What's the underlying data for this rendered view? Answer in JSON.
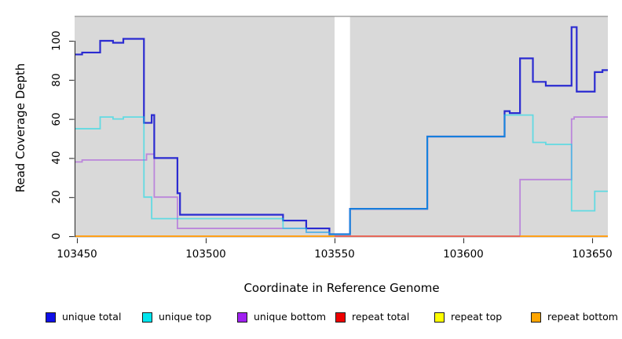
{
  "chart_data": {
    "type": "line",
    "subtype": "step",
    "xlabel": "Coordinate in Reference Genome",
    "ylabel": "Read Coverage Depth",
    "xlim": [
      103450,
      103656
    ],
    "ylim": [
      0,
      113
    ],
    "x_ticks": [
      103450,
      103500,
      103550,
      103600,
      103650
    ],
    "y_ticks": [
      0,
      20,
      40,
      60,
      80,
      100
    ],
    "grid": false,
    "panel_background": "#D9D9D9",
    "panel_top_border": "#A8A8A8",
    "gap_band": {
      "from": 103550,
      "to": 103556,
      "color": "#FFFFFF"
    },
    "series": [
      {
        "name": "repeat top",
        "color": "#F5E800",
        "opacity": 1,
        "width": 1.6,
        "points": [
          [
            103450,
            0
          ],
          [
            103656,
            0
          ]
        ]
      },
      {
        "name": "unique bottom",
        "color": "#BB86DB",
        "opacity": 1,
        "width": 1.8,
        "points": [
          [
            103450,
            38
          ],
          [
            103452,
            39
          ],
          [
            103477,
            42
          ],
          [
            103480,
            20
          ],
          [
            103489,
            4
          ],
          [
            103539,
            2
          ],
          [
            103548,
            0
          ],
          [
            103622,
            29
          ],
          [
            103642,
            60
          ],
          [
            103643,
            61
          ],
          [
            103656,
            61
          ]
        ]
      },
      {
        "name": "repeat bottom",
        "color": "#FFA019",
        "opacity": 1,
        "width": 2,
        "points": [
          [
            103450,
            0
          ],
          [
            103656,
            0
          ]
        ]
      },
      {
        "name": "repeat total",
        "color": "#DE5570",
        "opacity": 1,
        "width": 1.6,
        "points": [
          [
            103550,
            0
          ],
          [
            103622,
            0
          ]
        ]
      },
      {
        "name": "unique total",
        "color": "#2B2BD1",
        "opacity": 1,
        "width": 2.2,
        "points": [
          [
            103450,
            93
          ],
          [
            103452,
            94
          ],
          [
            103459,
            100
          ],
          [
            103464,
            99
          ],
          [
            103468,
            101
          ],
          [
            103476,
            58
          ],
          [
            103479,
            62
          ],
          [
            103480,
            40
          ],
          [
            103489,
            22
          ],
          [
            103490,
            11
          ],
          [
            103530,
            8
          ],
          [
            103539,
            4
          ],
          [
            103548,
            1
          ],
          [
            103556,
            14
          ],
          [
            103586,
            51
          ],
          [
            103616,
            64
          ],
          [
            103618,
            63
          ],
          [
            103622,
            91
          ],
          [
            103627,
            79
          ],
          [
            103632,
            77
          ],
          [
            103642,
            107
          ],
          [
            103644,
            74
          ],
          [
            103651,
            84
          ],
          [
            103654,
            85
          ],
          [
            103656,
            85
          ]
        ]
      },
      {
        "name": "unique top",
        "color": "#00DBE9",
        "opacity": 0.55,
        "width": 1.8,
        "points": [
          [
            103450,
            55
          ],
          [
            103459,
            61
          ],
          [
            103464,
            60
          ],
          [
            103468,
            61
          ],
          [
            103476,
            20
          ],
          [
            103479,
            9
          ],
          [
            103530,
            4
          ],
          [
            103539,
            2
          ],
          [
            103548,
            1
          ],
          [
            103556,
            14
          ],
          [
            103586,
            51
          ],
          [
            103616,
            62
          ],
          [
            103627,
            48
          ],
          [
            103632,
            47
          ],
          [
            103642,
            13
          ],
          [
            103651,
            23
          ],
          [
            103656,
            23
          ]
        ]
      }
    ],
    "legend_position": "bottom",
    "legend": [
      {
        "label": "unique total",
        "color": "#0F0FE8"
      },
      {
        "label": "unique top",
        "color": "#00E5EE"
      },
      {
        "label": "unique bottom",
        "color": "#A020F0"
      },
      {
        "label": "repeat total",
        "color": "#EE0000"
      },
      {
        "label": "repeat top",
        "color": "#FFFF00"
      },
      {
        "label": "repeat bottom",
        "color": "#FFA500"
      }
    ]
  }
}
